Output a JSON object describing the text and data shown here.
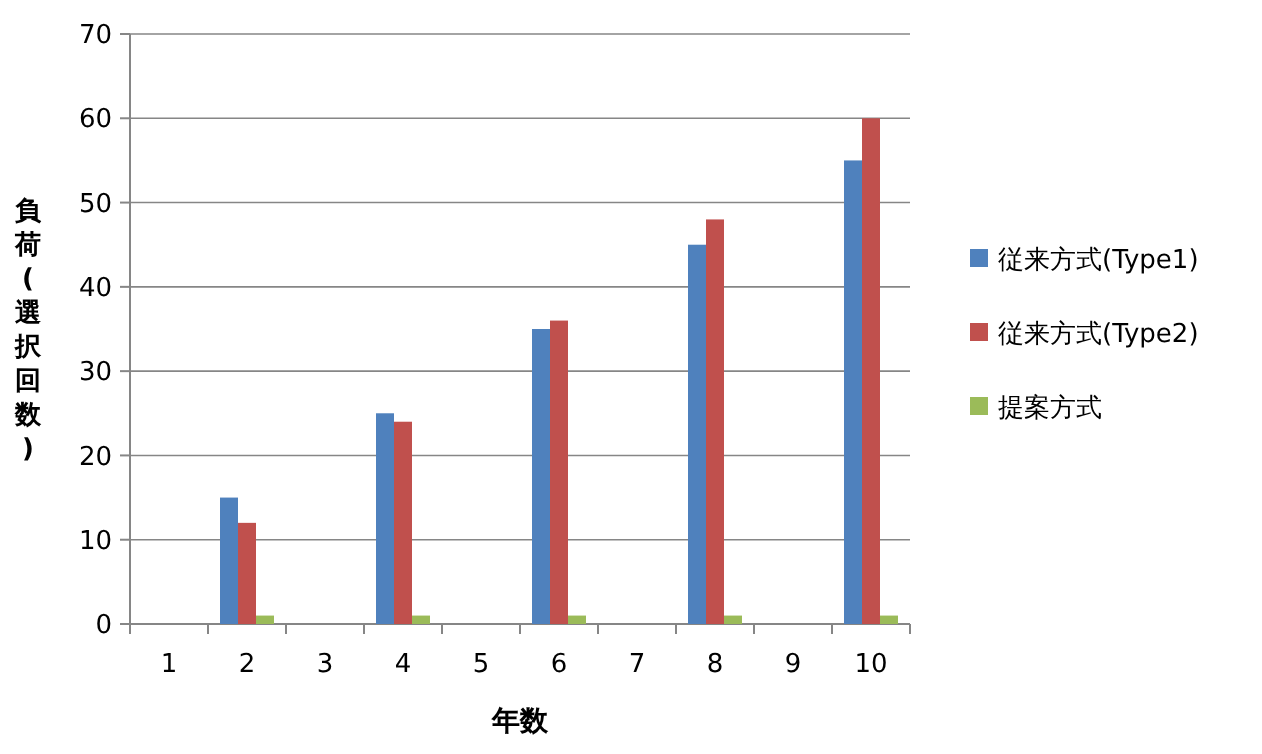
{
  "chart_data": {
    "type": "bar",
    "xlabel": "年数",
    "ylabel": "負荷(選択回数)",
    "categories": [
      "1",
      "2",
      "3",
      "4",
      "5",
      "6",
      "7",
      "8",
      "9",
      "10"
    ],
    "series": [
      {
        "name": "従来方式(Type1)",
        "color": "#4f81bd",
        "values": [
          null,
          15,
          null,
          25,
          null,
          35,
          null,
          45,
          null,
          55
        ]
      },
      {
        "name": "従来方式(Type2)",
        "color": "#c0504d",
        "values": [
          null,
          12,
          null,
          24,
          null,
          36,
          null,
          48,
          null,
          60
        ]
      },
      {
        "name": "提案方式",
        "color": "#9bbb59",
        "values": [
          null,
          1,
          null,
          1,
          null,
          1,
          null,
          1,
          null,
          1
        ]
      }
    ],
    "ylim": [
      0,
      70
    ],
    "yticks": [
      0,
      10,
      20,
      30,
      40,
      50,
      60,
      70
    ],
    "grid": "y",
    "legend": "right"
  }
}
